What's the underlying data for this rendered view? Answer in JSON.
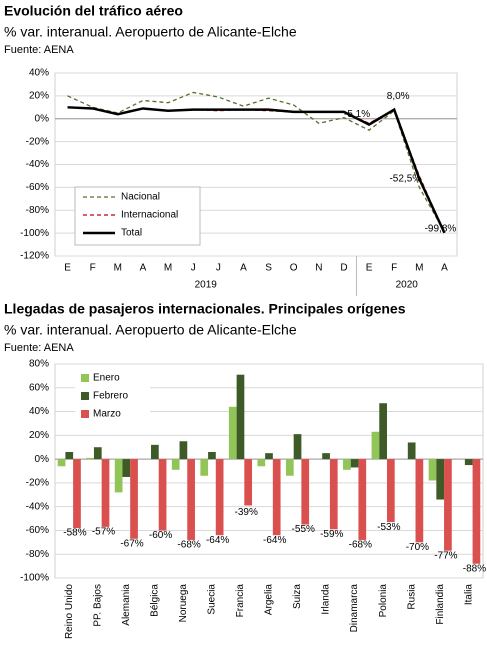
{
  "chart_data": [
    {
      "type": "line",
      "title": "Evolución del tráfico aéreo",
      "subtitle": "% var. interanual. Aeropuerto de Alicante-Elche",
      "source": "Fuente: AENA",
      "categories": [
        "E",
        "F",
        "M",
        "A",
        "M",
        "J",
        "J",
        "A",
        "S",
        "O",
        "N",
        "D",
        "E",
        "F",
        "M",
        "A"
      ],
      "group_labels": [
        "2019",
        "2020"
      ],
      "series": [
        {
          "name": "Nacional",
          "color": "#5a6e2c",
          "dash": "4,3",
          "values": [
            20,
            10,
            5,
            16,
            14,
            23,
            19,
            11,
            18,
            12,
            -4,
            1,
            -10,
            7,
            -60,
            -99
          ]
        },
        {
          "name": "Internacional",
          "color": "#c00000",
          "dash": "4,3",
          "values": [
            10,
            9,
            4,
            9,
            7,
            8,
            7,
            8,
            7,
            6,
            6,
            6,
            -4,
            8,
            -50,
            -100
          ]
        },
        {
          "name": "Total",
          "color": "#000000",
          "dash": "",
          "values": [
            10,
            9,
            4,
            9,
            7,
            8,
            8,
            8,
            8,
            6,
            6,
            6,
            -5.1,
            8.0,
            -52.5,
            -99.8
          ],
          "value_labels": [
            null,
            null,
            null,
            null,
            null,
            null,
            null,
            null,
            null,
            null,
            null,
            null,
            "-5,1%",
            "8,0%",
            "-52,5%",
            "-99,8%"
          ]
        }
      ],
      "ylim": [
        -120,
        40
      ],
      "yticks": [
        {
          "value": -120,
          "label": "-120%"
        },
        {
          "value": -100,
          "label": "-100%"
        },
        {
          "value": -80,
          "label": "-80%"
        },
        {
          "value": -60,
          "label": "-60%"
        },
        {
          "value": -40,
          "label": "-40%"
        },
        {
          "value": -20,
          "label": "-20%"
        },
        {
          "value": 0,
          "label": "0%"
        },
        {
          "value": 20,
          "label": "20%"
        },
        {
          "value": 40,
          "label": "40%"
        }
      ],
      "grid": true
    },
    {
      "type": "bar",
      "title": "Llegadas de pasajeros internacionales. Principales orígenes",
      "subtitle": "% var. interanual. Aeropuerto de Alicante-Elche",
      "source": "Fuente: AENA",
      "categories": [
        "Reino Unido",
        "PP. Bajos",
        "Alemania",
        "Bélgica",
        "Noruega",
        "Suecia",
        "Francia",
        "Argelia",
        "Suiza",
        "Irlanda",
        "Dinamarca",
        "Polonia",
        "Rusia",
        "Finlandia",
        "Italia"
      ],
      "series": [
        {
          "name": "Enero",
          "color": "#92c558",
          "values": [
            -6,
            1,
            -28,
            0,
            -9,
            -14,
            44,
            -6,
            -14,
            0,
            -9,
            23,
            0,
            -18,
            0
          ]
        },
        {
          "name": "Febrero",
          "color": "#3d5a27",
          "values": [
            6,
            10,
            -15,
            12,
            15,
            6,
            71,
            5,
            21,
            5,
            -7,
            47,
            14,
            -34,
            -5
          ]
        },
        {
          "name": "Marzo",
          "color": "#d9504f",
          "values": [
            -58,
            -57,
            -67,
            -60,
            -68,
            -64,
            -39,
            -64,
            -55,
            -59,
            -68,
            -53,
            -70,
            -77,
            -88
          ],
          "value_labels": [
            "-58%",
            "-57%",
            "-67%",
            "-60%",
            "-68%",
            "-64%",
            "-39%",
            "-64%",
            "-55%",
            "-59%",
            "-68%",
            "-53%",
            "-70%",
            "-77%",
            "-88%"
          ]
        }
      ],
      "ylim": [
        -100,
        80
      ],
      "yticks": [
        {
          "value": -100,
          "label": "-100%"
        },
        {
          "value": -80,
          "label": "-80%"
        },
        {
          "value": -60,
          "label": "-60%"
        },
        {
          "value": -40,
          "label": "-40%"
        },
        {
          "value": -20,
          "label": "-20%"
        },
        {
          "value": 0,
          "label": "0%"
        },
        {
          "value": 20,
          "label": "20%"
        },
        {
          "value": 40,
          "label": "40%"
        },
        {
          "value": 60,
          "label": "60%"
        },
        {
          "value": 80,
          "label": "80%"
        }
      ],
      "grid": true
    }
  ]
}
